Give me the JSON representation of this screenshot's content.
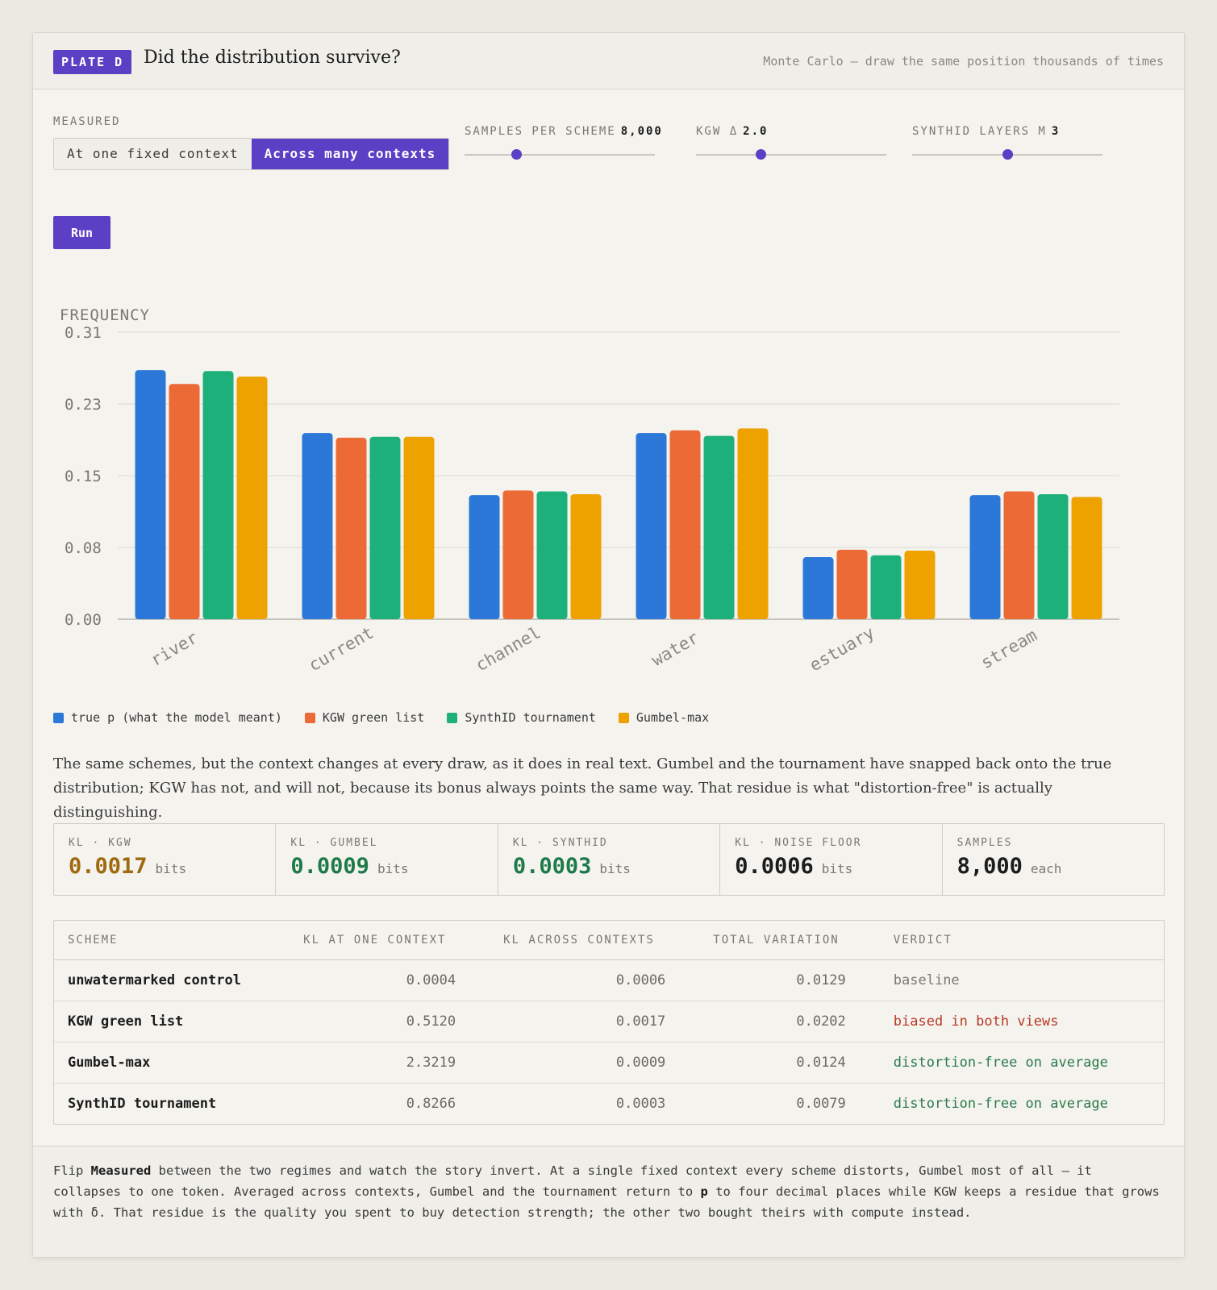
{
  "header": {
    "badge": "PLATE D",
    "title": "Did the distribution survive?",
    "subtitle": "Monte Carlo — draw the same position thousands of times"
  },
  "controls": {
    "measured_label": "MEASURED",
    "options": [
      "At one fixed context",
      "Across many contexts"
    ],
    "selected": 1,
    "sliders": [
      {
        "label": "SAMPLES PER SCHEME",
        "value": "8,000",
        "fraction": 0.27
      },
      {
        "label": "KGW Δ",
        "value": "2.0",
        "fraction": 0.34
      },
      {
        "label": "SYNTHID LAYERS M",
        "value": "3",
        "fraction": 0.5
      }
    ],
    "run_label": "Run"
  },
  "chart_data": {
    "type": "bar",
    "ylabel": "FREQUENCY",
    "ylim": [
      0,
      0.31
    ],
    "yticks": [
      "0.00",
      "0.08",
      "0.15",
      "0.23",
      "0.31"
    ],
    "categories": [
      "river",
      "current",
      "channel",
      "water",
      "estuary",
      "stream"
    ],
    "series": [
      {
        "name": "true p (what the model meant)",
        "color": "#2b78d8",
        "values": [
          0.269,
          0.201,
          0.134,
          0.201,
          0.067,
          0.134
        ]
      },
      {
        "name": "KGW green list",
        "color": "#ec6a36",
        "values": [
          0.254,
          0.196,
          0.139,
          0.204,
          0.075,
          0.138
        ]
      },
      {
        "name": "SynthID tournament",
        "color": "#1eb07a",
        "values": [
          0.268,
          0.197,
          0.138,
          0.198,
          0.069,
          0.135
        ]
      },
      {
        "name": "Gumbel-max",
        "color": "#eea200",
        "values": [
          0.262,
          0.197,
          0.135,
          0.206,
          0.074,
          0.132
        ]
      }
    ],
    "grid": true,
    "legend": "bottom-left"
  },
  "prose": "The same schemes, but the context changes at every draw, as it does in real text. Gumbel and the tournament have snapped back onto the true distribution; KGW has not, and will not, because its bonus always points the same way. That residue is what \"distortion-free\" is actually distinguishing.",
  "stats": [
    {
      "key": "KL · KGW",
      "value": "0.0017",
      "unit": "bits",
      "color": "#a0690f"
    },
    {
      "key": "KL · GUMBEL",
      "value": "0.0009",
      "unit": "bits",
      "color": "#1f7a4a"
    },
    {
      "key": "KL · SYNTHID",
      "value": "0.0003",
      "unit": "bits",
      "color": "#1f7a4a"
    },
    {
      "key": "KL · NOISE FLOOR",
      "value": "0.0006",
      "unit": "bits",
      "color": "#1c1c1c"
    },
    {
      "key": "SAMPLES",
      "value": "8,000",
      "unit": "each",
      "color": "#1c1c1c"
    }
  ],
  "table": {
    "headers": [
      "SCHEME",
      "KL AT ONE CONTEXT",
      "KL ACROSS CONTEXTS",
      "TOTAL VARIATION",
      "VERDICT"
    ],
    "rows": [
      {
        "scheme": "unwatermarked control",
        "kl_one": "0.0004",
        "kl_across": "0.0006",
        "tv": "0.0129",
        "verdict": "baseline",
        "verdict_color": "#7a786f"
      },
      {
        "scheme": "KGW green list",
        "kl_one": "0.5120",
        "kl_across": "0.0017",
        "tv": "0.0202",
        "verdict": "biased in both views",
        "verdict_color": "#b83a26"
      },
      {
        "scheme": "Gumbel-max",
        "kl_one": "2.3219",
        "kl_across": "0.0009",
        "tv": "0.0124",
        "verdict": "distortion-free on average",
        "verdict_color": "#2c7a4e"
      },
      {
        "scheme": "SynthID tournament",
        "kl_one": "0.8266",
        "kl_across": "0.0003",
        "tv": "0.0079",
        "verdict": "distortion-free on average",
        "verdict_color": "#2c7a4e"
      }
    ]
  },
  "footer": {
    "t1": "Flip ",
    "b1": "Measured",
    "t2": " between the two regimes and watch the story invert. At a single fixed context every scheme distorts, Gumbel most of all — it collapses to one token. Averaged across contexts, Gumbel and the tournament return to ",
    "b2": "p",
    "t3": " to four decimal places while KGW keeps a residue that grows with δ. That residue is the quality you spent to buy detection strength; the other two bought theirs with compute instead."
  }
}
